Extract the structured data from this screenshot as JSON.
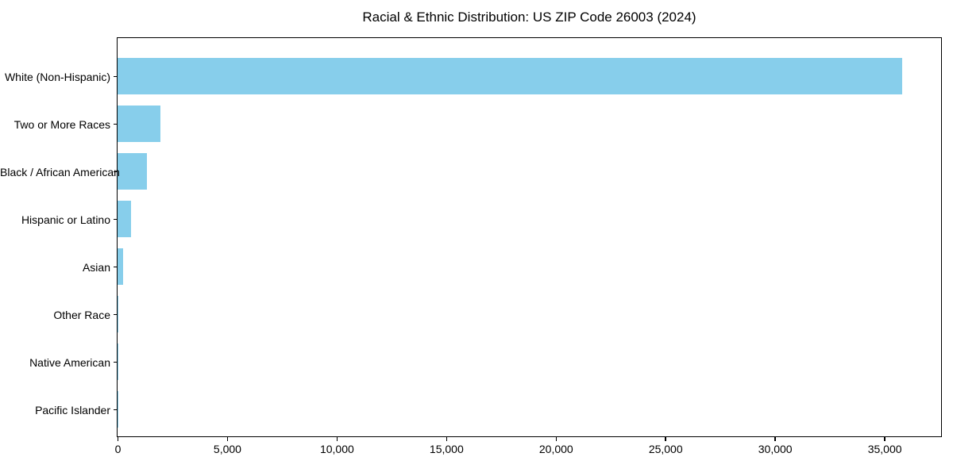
{
  "chart_data": {
    "type": "bar",
    "orientation": "horizontal",
    "title": "Racial & Ethnic Distribution: US ZIP Code 26003 (2024)",
    "xlabel": "",
    "ylabel": "",
    "categories": [
      "White (Non-Hispanic)",
      "Two or More Races",
      "Black / African American",
      "Hispanic or Latino",
      "Asian",
      "Other Race",
      "Native American",
      "Pacific Islander"
    ],
    "values": [
      35800,
      1950,
      1350,
      620,
      270,
      50,
      20,
      10
    ],
    "xlim": [
      0,
      37550
    ],
    "x_ticks": [
      0,
      5000,
      10000,
      15000,
      20000,
      25000,
      30000,
      35000
    ],
    "x_tick_labels": [
      "0",
      "5,000",
      "10,000",
      "15,000",
      "20,000",
      "25,000",
      "30,000",
      "35,000"
    ],
    "bar_color": "#87CEEB",
    "background_color": "#ffffff",
    "grid": false,
    "legend": null
  }
}
